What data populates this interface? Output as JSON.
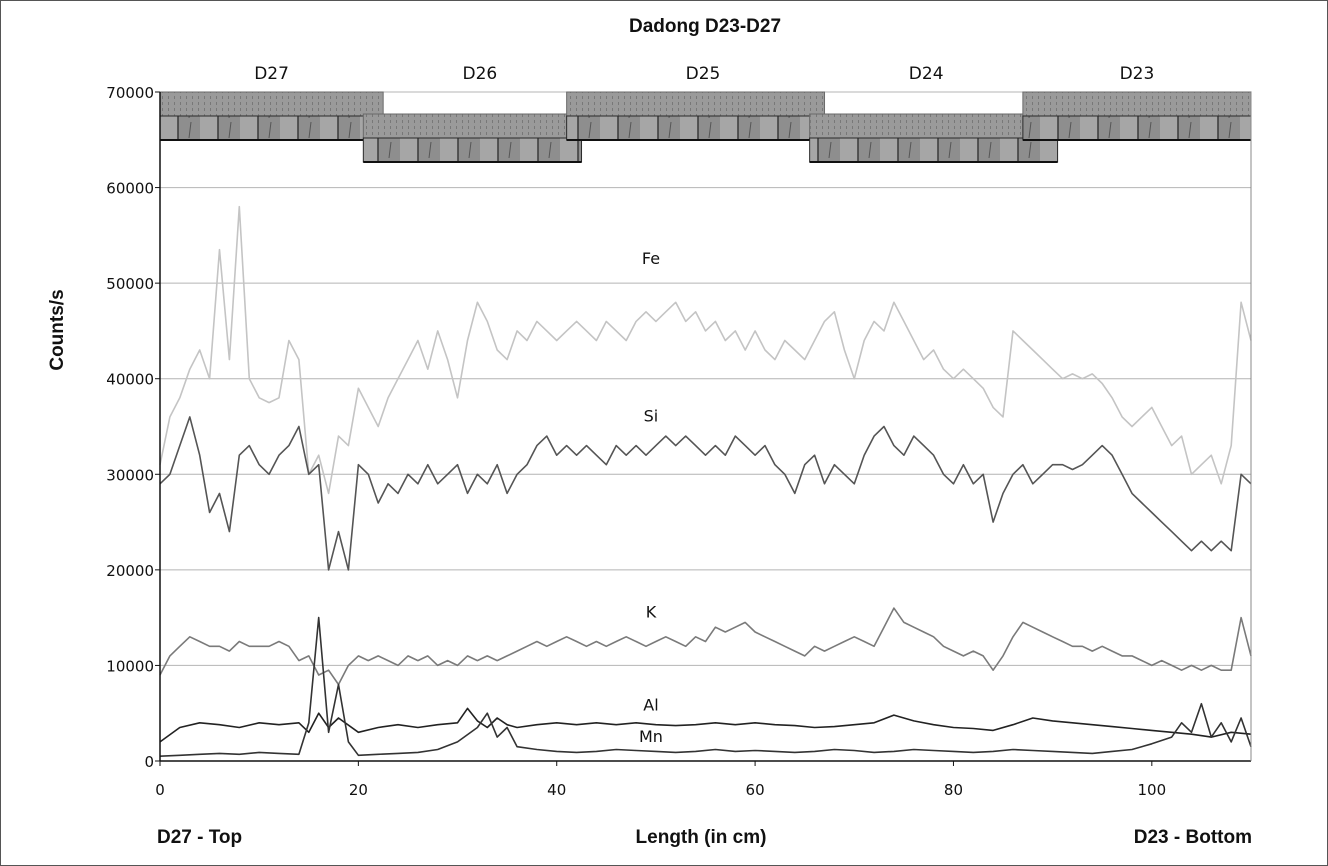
{
  "chart_data": {
    "type": "line",
    "title": "Dadong D23-D27",
    "ylabel": "Counts/s",
    "xlabel": "Length (in cm)",
    "xlabel_left": "D27 - Top",
    "xlabel_right": "D23 - Bottom",
    "xlim": [
      0,
      110
    ],
    "ylim": [
      0,
      70000
    ],
    "yticks": [
      "0",
      "10000",
      "20000",
      "30000",
      "40000",
      "50000",
      "60000",
      "70000"
    ],
    "xticks": [
      "0",
      "20",
      "40",
      "60",
      "80",
      "100"
    ],
    "grid": "horizontal",
    "core_sections": [
      {
        "label": "D27",
        "start": 0,
        "end": 22.5
      },
      {
        "label": "D26",
        "start": 22.5,
        "end": 42
      },
      {
        "label": "D25",
        "start": 42,
        "end": 67.5
      },
      {
        "label": "D24",
        "start": 67.5,
        "end": 87
      },
      {
        "label": "D23",
        "start": 87,
        "end": 110
      }
    ],
    "core_images": [
      {
        "section": "D27",
        "start": 0,
        "end": 22.5,
        "row": "upper"
      },
      {
        "section": "D26",
        "start": 20.5,
        "end": 42.5,
        "row": "lower"
      },
      {
        "section": "D25",
        "start": 41,
        "end": 67,
        "row": "upper"
      },
      {
        "section": "D24",
        "start": 65.5,
        "end": 90.5,
        "row": "lower"
      },
      {
        "section": "D23",
        "start": 87,
        "end": 110,
        "row": "upper"
      }
    ],
    "series": [
      {
        "name": "Fe",
        "color": "#c4c4c4",
        "label_at": [
          49.5,
          52000
        ],
        "x": [
          0,
          1,
          2,
          3,
          4,
          5,
          6,
          7,
          8,
          9,
          10,
          11,
          12,
          13,
          14,
          15,
          16,
          17,
          18,
          19,
          20,
          21,
          22,
          23,
          24,
          25,
          26,
          27,
          28,
          29,
          30,
          31,
          32,
          33,
          34,
          35,
          36,
          37,
          38,
          39,
          40,
          41,
          42,
          43,
          44,
          45,
          46,
          47,
          48,
          49,
          50,
          51,
          52,
          53,
          54,
          55,
          56,
          57,
          58,
          59,
          60,
          61,
          62,
          63,
          64,
          65,
          66,
          67,
          68,
          69,
          70,
          71,
          72,
          73,
          74,
          75,
          76,
          77,
          78,
          79,
          80,
          81,
          82,
          83,
          84,
          85,
          86,
          87,
          88,
          89,
          90,
          91,
          92,
          93,
          94,
          95,
          96,
          97,
          98,
          99,
          100,
          101,
          102,
          103,
          104,
          105,
          106,
          107,
          108,
          109,
          110
        ],
        "y": [
          31000,
          36000,
          38000,
          41000,
          43000,
          40000,
          53500,
          42000,
          58000,
          40000,
          38000,
          37500,
          38000,
          44000,
          42000,
          30000,
          32000,
          28000,
          34000,
          33000,
          39000,
          37000,
          35000,
          38000,
          40000,
          42000,
          44000,
          41000,
          45000,
          42000,
          38000,
          44000,
          48000,
          46000,
          43000,
          42000,
          45000,
          44000,
          46000,
          45000,
          44000,
          45000,
          46000,
          45000,
          44000,
          46000,
          45000,
          44000,
          46000,
          47000,
          46000,
          47000,
          48000,
          46000,
          47000,
          45000,
          46000,
          44000,
          45000,
          43000,
          45000,
          43000,
          42000,
          44000,
          43000,
          42000,
          44000,
          46000,
          47000,
          43000,
          40000,
          44000,
          46000,
          45000,
          48000,
          46000,
          44000,
          42000,
          43000,
          41000,
          40000,
          41000,
          40000,
          39000,
          37000,
          36000,
          45000,
          44000,
          43000,
          42000,
          41000,
          40000,
          40500,
          40000,
          40500,
          39500,
          38000,
          36000,
          35000,
          36000,
          37000,
          35000,
          33000,
          34000,
          30000,
          31000,
          32000,
          29000,
          33000,
          48000,
          44000
        ]
      },
      {
        "name": "Si",
        "color": "#555555",
        "label_at": [
          49.5,
          35500
        ],
        "x": [
          0,
          1,
          2,
          3,
          4,
          5,
          6,
          7,
          8,
          9,
          10,
          11,
          12,
          13,
          14,
          15,
          16,
          17,
          18,
          19,
          20,
          21,
          22,
          23,
          24,
          25,
          26,
          27,
          28,
          29,
          30,
          31,
          32,
          33,
          34,
          35,
          36,
          37,
          38,
          39,
          40,
          41,
          42,
          43,
          44,
          45,
          46,
          47,
          48,
          49,
          50,
          51,
          52,
          53,
          54,
          55,
          56,
          57,
          58,
          59,
          60,
          61,
          62,
          63,
          64,
          65,
          66,
          67,
          68,
          69,
          70,
          71,
          72,
          73,
          74,
          75,
          76,
          77,
          78,
          79,
          80,
          81,
          82,
          83,
          84,
          85,
          86,
          87,
          88,
          89,
          90,
          91,
          92,
          93,
          94,
          95,
          96,
          97,
          98,
          99,
          100,
          101,
          102,
          103,
          104,
          105,
          106,
          107,
          108,
          109,
          110
        ],
        "y": [
          29000,
          30000,
          33000,
          36000,
          32000,
          26000,
          28000,
          24000,
          32000,
          33000,
          31000,
          30000,
          32000,
          33000,
          35000,
          30000,
          31000,
          20000,
          24000,
          20000,
          31000,
          30000,
          27000,
          29000,
          28000,
          30000,
          29000,
          31000,
          29000,
          30000,
          31000,
          28000,
          30000,
          29000,
          31000,
          28000,
          30000,
          31000,
          33000,
          34000,
          32000,
          33000,
          32000,
          33000,
          32000,
          31000,
          33000,
          32000,
          33000,
          32000,
          33000,
          34000,
          33000,
          34000,
          33000,
          32000,
          33000,
          32000,
          34000,
          33000,
          32000,
          33000,
          31000,
          30000,
          28000,
          31000,
          32000,
          29000,
          31000,
          30000,
          29000,
          32000,
          34000,
          35000,
          33000,
          32000,
          34000,
          33000,
          32000,
          30000,
          29000,
          31000,
          29000,
          30000,
          25000,
          28000,
          30000,
          31000,
          29000,
          30000,
          31000,
          31000,
          30500,
          31000,
          32000,
          33000,
          32000,
          30000,
          28000,
          27000,
          26000,
          25000,
          24000,
          23000,
          22000,
          23000,
          22000,
          23000,
          22000,
          30000,
          29000
        ]
      },
      {
        "name": "K",
        "color": "#7a7a7a",
        "label_at": [
          49.5,
          15000
        ],
        "x": [
          0,
          1,
          2,
          3,
          4,
          5,
          6,
          7,
          8,
          9,
          10,
          11,
          12,
          13,
          14,
          15,
          16,
          17,
          18,
          19,
          20,
          21,
          22,
          23,
          24,
          25,
          26,
          27,
          28,
          29,
          30,
          31,
          32,
          33,
          34,
          35,
          36,
          37,
          38,
          39,
          40,
          41,
          42,
          43,
          44,
          45,
          46,
          47,
          48,
          49,
          50,
          51,
          52,
          53,
          54,
          55,
          56,
          57,
          58,
          59,
          60,
          61,
          62,
          63,
          64,
          65,
          66,
          67,
          68,
          69,
          70,
          71,
          72,
          73,
          74,
          75,
          76,
          77,
          78,
          79,
          80,
          81,
          82,
          83,
          84,
          85,
          86,
          87,
          88,
          89,
          90,
          91,
          92,
          93,
          94,
          95,
          96,
          97,
          98,
          99,
          100,
          101,
          102,
          103,
          104,
          105,
          106,
          107,
          108,
          109,
          110
        ],
        "y": [
          9000,
          11000,
          12000,
          13000,
          12500,
          12000,
          12000,
          11500,
          12500,
          12000,
          12000,
          12000,
          12500,
          12000,
          10500,
          11000,
          9000,
          9500,
          8000,
          10000,
          11000,
          10500,
          11000,
          10500,
          10000,
          11000,
          10500,
          11000,
          10000,
          10500,
          10000,
          11000,
          10500,
          11000,
          10500,
          11000,
          11500,
          12000,
          12500,
          12000,
          12500,
          13000,
          12500,
          12000,
          12500,
          12000,
          12500,
          13000,
          12500,
          12000,
          12500,
          13000,
          12500,
          12000,
          13000,
          12500,
          14000,
          13500,
          14000,
          14500,
          13500,
          13000,
          12500,
          12000,
          11500,
          11000,
          12000,
          11500,
          12000,
          12500,
          13000,
          12500,
          12000,
          14000,
          16000,
          14500,
          14000,
          13500,
          13000,
          12000,
          11500,
          11000,
          11500,
          11000,
          9500,
          11000,
          13000,
          14500,
          14000,
          13500,
          13000,
          12500,
          12000,
          12000,
          11500,
          12000,
          11500,
          11000,
          11000,
          10500,
          10000,
          10500,
          10000,
          9500,
          10000,
          9500,
          10000,
          9500,
          9500,
          15000,
          11000
        ]
      },
      {
        "name": "Al",
        "color": "#222222",
        "label_at": [
          49.5,
          5300
        ],
        "x": [
          0,
          2,
          4,
          6,
          8,
          10,
          12,
          14,
          15,
          16,
          17,
          18,
          20,
          22,
          24,
          26,
          28,
          30,
          31,
          32,
          33,
          34,
          35,
          36,
          38,
          40,
          42,
          44,
          46,
          48,
          50,
          52,
          54,
          56,
          58,
          60,
          62,
          64,
          66,
          68,
          70,
          72,
          74,
          76,
          78,
          80,
          82,
          84,
          86,
          88,
          90,
          92,
          94,
          96,
          98,
          100,
          102,
          104,
          106,
          108,
          110
        ],
        "y": [
          2000,
          3500,
          4000,
          3800,
          3500,
          4000,
          3800,
          4000,
          3000,
          5000,
          3500,
          4500,
          3000,
          3500,
          3800,
          3500,
          3800,
          4000,
          5500,
          4200,
          3500,
          4500,
          3800,
          3500,
          3800,
          4000,
          3800,
          4000,
          3800,
          4000,
          3800,
          3700,
          3800,
          4000,
          3800,
          4000,
          3800,
          3700,
          3500,
          3600,
          3800,
          4000,
          4800,
          4200,
          3800,
          3500,
          3400,
          3200,
          3800,
          4500,
          4200,
          4000,
          3800,
          3600,
          3400,
          3200,
          3000,
          2800,
          2500,
          3000,
          2800
        ]
      },
      {
        "name": "Mn",
        "color": "#333333",
        "label_at": [
          49.5,
          2000
        ],
        "x": [
          0,
          2,
          4,
          6,
          8,
          10,
          12,
          14,
          15,
          16,
          17,
          18,
          19,
          20,
          22,
          24,
          26,
          28,
          30,
          32,
          33,
          34,
          35,
          36,
          38,
          40,
          42,
          44,
          46,
          48,
          50,
          52,
          54,
          56,
          58,
          60,
          62,
          64,
          66,
          68,
          70,
          72,
          74,
          76,
          78,
          80,
          82,
          84,
          86,
          88,
          90,
          92,
          94,
          96,
          98,
          100,
          102,
          103,
          104,
          105,
          106,
          107,
          108,
          109,
          110
        ],
        "y": [
          500,
          600,
          700,
          800,
          700,
          900,
          800,
          700,
          4000,
          15000,
          3000,
          8000,
          2000,
          600,
          700,
          800,
          900,
          1200,
          2000,
          3500,
          5000,
          2500,
          3500,
          1500,
          1200,
          1000,
          900,
          1000,
          1200,
          1100,
          1000,
          900,
          1000,
          1200,
          1000,
          1100,
          1000,
          900,
          1000,
          1200,
          1100,
          900,
          1000,
          1200,
          1100,
          1000,
          900,
          1000,
          1200,
          1100,
          1000,
          900,
          800,
          1000,
          1200,
          1800,
          2500,
          4000,
          3000,
          6000,
          2500,
          4000,
          2000,
          4500,
          1500
        ]
      }
    ]
  }
}
